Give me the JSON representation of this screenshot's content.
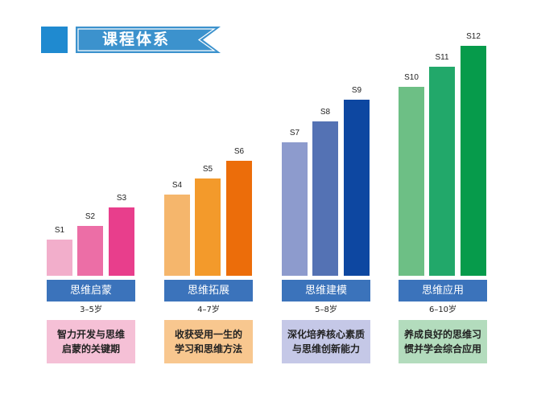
{
  "header": {
    "title": "课程体系",
    "accent_color": "#1f8ad0",
    "banner_color": "#3c92cd"
  },
  "groups": [
    {
      "name": "思维启蒙",
      "age": "3–5岁",
      "desc_lines": [
        "智力开发与思维",
        "启蒙的关键期"
      ],
      "desc_bg": "#f5c0d6",
      "bars": [
        {
          "label": "S1",
          "color": "#f2aecb"
        },
        {
          "label": "S2",
          "color": "#ec6ea6"
        },
        {
          "label": "S3",
          "color": "#e83e8c"
        }
      ]
    },
    {
      "name": "思维拓展",
      "age": "4–7岁",
      "desc_lines": [
        "收获受用一生的",
        "学习和思维方法"
      ],
      "desc_bg": "#f8c78f",
      "bars": [
        {
          "label": "S4",
          "color": "#f5b66c"
        },
        {
          "label": "S5",
          "color": "#f39a2b"
        },
        {
          "label": "S6",
          "color": "#ec6d0a"
        }
      ]
    },
    {
      "name": "思维建模",
      "age": "5–8岁",
      "desc_lines": [
        "深化培养核心素质",
        "与思维创新能力"
      ],
      "desc_bg": "#c5c8e7",
      "bars": [
        {
          "label": "S7",
          "color": "#8d9bcd"
        },
        {
          "label": "S8",
          "color": "#5472b4"
        },
        {
          "label": "S9",
          "color": "#0d47a1"
        }
      ]
    },
    {
      "name": "思维应用",
      "age": "6–10岁",
      "desc_lines": [
        "养成良好的思维习",
        "惯并学会综合应用"
      ],
      "desc_bg": "#b3dcbd",
      "bars": [
        {
          "label": "S10",
          "color": "#6dbf85"
        },
        {
          "label": "S11",
          "color": "#22a86a"
        },
        {
          "label": "S12",
          "color": "#069b4b"
        }
      ]
    }
  ],
  "chart_data": {
    "type": "bar",
    "title": "课程体系",
    "categories": [
      "S1",
      "S2",
      "S3",
      "S4",
      "S5",
      "S6",
      "S7",
      "S8",
      "S9",
      "S10",
      "S11",
      "S12"
    ],
    "values": [
      45,
      62,
      85,
      101,
      121,
      143,
      166,
      192,
      219,
      235,
      260,
      286
    ],
    "groups": [
      {
        "name": "思维启蒙",
        "age": "3–5岁",
        "members": [
          "S1",
          "S2",
          "S3"
        ]
      },
      {
        "name": "思维拓展",
        "age": "4–7岁",
        "members": [
          "S4",
          "S5",
          "S6"
        ]
      },
      {
        "name": "思维建模",
        "age": "5–8岁",
        "members": [
          "S7",
          "S8",
          "S9"
        ]
      },
      {
        "name": "思维应用",
        "age": "6–10岁",
        "members": [
          "S10",
          "S11",
          "S12"
        ]
      }
    ],
    "xlabel": "",
    "ylabel": "",
    "grid": false,
    "legend": "none",
    "note": "values are relative bar heights in pixels (no y-axis shown)"
  }
}
